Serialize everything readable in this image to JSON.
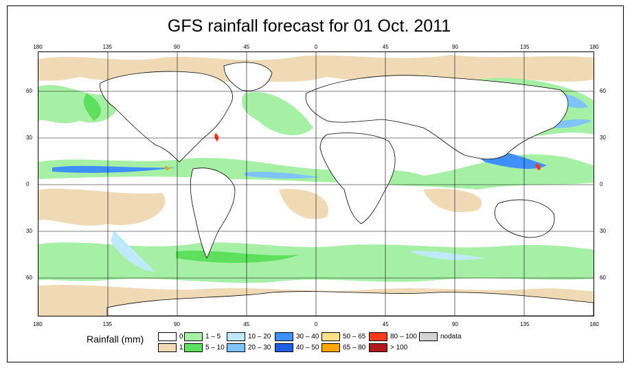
{
  "title": "GFS rainfall forecast for 01 Oct. 2011",
  "map": {
    "top_longitude_ticks": [
      "180",
      "135",
      "90",
      "45",
      "0",
      "45",
      "90",
      "135",
      "180"
    ],
    "bottom_longitude_ticks": [
      "180",
      "135",
      "90",
      "45",
      "0",
      "45",
      "90",
      "135",
      "180"
    ],
    "latitude_ticks_left": [
      "60",
      "30",
      "0",
      "30",
      "60"
    ],
    "latitude_ticks_right": [
      "60",
      "30",
      "0",
      "30",
      "60"
    ],
    "grid": true,
    "colors": {
      "land_outline": "#000000",
      "grid": "#000000"
    }
  },
  "legend": {
    "title": "Rainfall (mm)",
    "entries": [
      {
        "label": "0",
        "color": "#ffffff"
      },
      {
        "label": "1",
        "color": "#f0d9b5"
      },
      {
        "label": "1 – 5",
        "color": "#a6f0a6"
      },
      {
        "label": "5 – 10",
        "color": "#5ee05e"
      },
      {
        "label": "10 – 20",
        "color": "#bfe9ff"
      },
      {
        "label": "20 – 30",
        "color": "#7fc3ff"
      },
      {
        "label": "30 – 40",
        "color": "#3f8fff"
      },
      {
        "label": "40 – 50",
        "color": "#1f5fe6"
      },
      {
        "label": "50 – 65",
        "color": "#ffe08a"
      },
      {
        "label": "65 – 80",
        "color": "#ffa500"
      },
      {
        "label": "80 – 100",
        "color": "#ff3a1a"
      },
      {
        "label": "> 100",
        "color": "#b01a1a"
      },
      {
        "label": "nodata",
        "color": "#d3d3d3"
      }
    ]
  }
}
